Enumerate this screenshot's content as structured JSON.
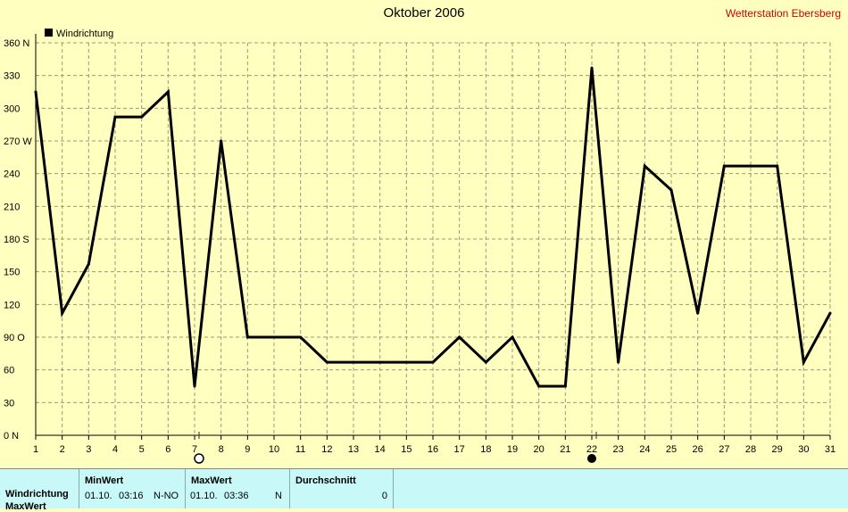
{
  "header": {
    "title": "Oktober 2006",
    "station": "Wetterstation Ebersberg"
  },
  "chart_data": {
    "type": "line",
    "title": "Oktober 2006",
    "ylim": [
      0,
      360
    ],
    "ytick_values": [
      0,
      30,
      60,
      90,
      120,
      150,
      180,
      210,
      240,
      270,
      300,
      330,
      360
    ],
    "ytick_labels": [
      "0 N",
      "30",
      "60",
      "90 O",
      "120",
      "150",
      "180 S",
      "210",
      "240",
      "270 W",
      "300",
      "330",
      "360 N"
    ],
    "x": [
      1,
      2,
      3,
      4,
      5,
      6,
      7,
      8,
      9,
      10,
      11,
      12,
      13,
      14,
      15,
      16,
      17,
      18,
      19,
      20,
      21,
      22,
      23,
      24,
      25,
      26,
      27,
      28,
      29,
      30,
      31
    ],
    "grid": true,
    "legend_position": "top-left",
    "series": [
      {
        "name": "Windrichtung",
        "color": "#000000",
        "values": [
          315,
          112,
          157,
          292,
          292,
          315,
          45,
          270,
          90,
          90,
          90,
          67,
          67,
          67,
          67,
          67,
          90,
          67,
          90,
          45,
          45,
          337,
          67,
          247,
          225,
          112,
          247,
          247,
          247,
          67,
          112
        ]
      }
    ],
    "moon_markers": [
      {
        "day": 7,
        "phase": "full-moon"
      },
      {
        "day": 22,
        "phase": "new-moon"
      }
    ]
  },
  "summary_table": {
    "min_header": "MinWert",
    "max_header": "MaxWert",
    "avg_header": "Durchschnitt",
    "row_label": "Windrichtung",
    "row_label_2": "MaxWert",
    "min_date": "01.10.",
    "min_time": "03:16",
    "min_value": "N-NO",
    "max_date": "01.10.",
    "max_time": "03:36",
    "max_value": "N",
    "avg_value": "0"
  }
}
